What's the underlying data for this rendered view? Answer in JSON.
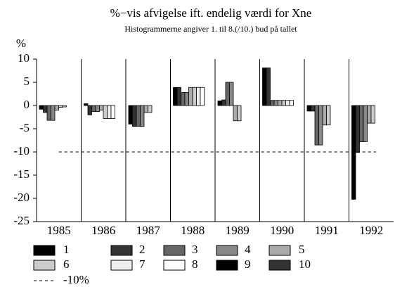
{
  "chart_data": {
    "type": "bar",
    "title": "%−vis afvigelse ift. endelig værdi for Xne",
    "subtitle": "Histogrammerne angiver 1. til 8.(/10.) bud på tallet",
    "y_label": "%",
    "categories": [
      "1985",
      "1986",
      "1987",
      "1988",
      "1989",
      "1990",
      "1991",
      "1992"
    ],
    "series": [
      {
        "name": "1",
        "color": "#000000",
        "values": [
          -0.8,
          0.4,
          -4.0,
          3.9,
          1.0,
          8.1,
          -1.2,
          -20.2
        ]
      },
      {
        "name": "2",
        "color": "#333333",
        "values": [
          -1.5,
          -2.0,
          -4.5,
          3.9,
          1.2,
          8.1,
          -1.2,
          -10.1
        ]
      },
      {
        "name": "3",
        "color": "#666666",
        "values": [
          -3.2,
          -1.3,
          -4.5,
          2.8,
          5.0,
          1.1,
          -8.5,
          -7.8
        ]
      },
      {
        "name": "4",
        "color": "#888888",
        "values": [
          -3.2,
          -1.3,
          -4.5,
          2.8,
          5.0,
          1.1,
          -8.5,
          -7.8
        ]
      },
      {
        "name": "5",
        "color": "#aaaaaa",
        "values": [
          -1.0,
          -1.0,
          -1.5,
          3.9,
          -3.3,
          1.1,
          -4.2,
          -3.8
        ]
      },
      {
        "name": "6",
        "color": "#cccccc",
        "values": [
          -0.4,
          -2.8,
          -1.5,
          3.9,
          -3.3,
          1.1,
          -4.2,
          -3.8
        ]
      },
      {
        "name": "7",
        "color": "#eeeeee",
        "values": [
          -0.3,
          -2.8,
          null,
          3.9,
          null,
          1.1,
          null,
          null
        ]
      },
      {
        "name": "8",
        "color": "#ffffff",
        "values": [
          null,
          -2.8,
          null,
          3.9,
          null,
          1.1,
          null,
          null
        ]
      },
      {
        "name": "9",
        "color": "#000000",
        "values": [
          null,
          null,
          null,
          null,
          null,
          null,
          null,
          null
        ]
      },
      {
        "name": "10",
        "color": "#333333",
        "values": [
          null,
          null,
          null,
          null,
          null,
          null,
          null,
          null
        ]
      }
    ],
    "reference_line": {
      "value": -10,
      "label": "-10%"
    },
    "ylim": [
      -25,
      10
    ],
    "yticks": [
      10,
      5,
      0,
      -5,
      -10,
      -15,
      -20,
      -25
    ]
  }
}
